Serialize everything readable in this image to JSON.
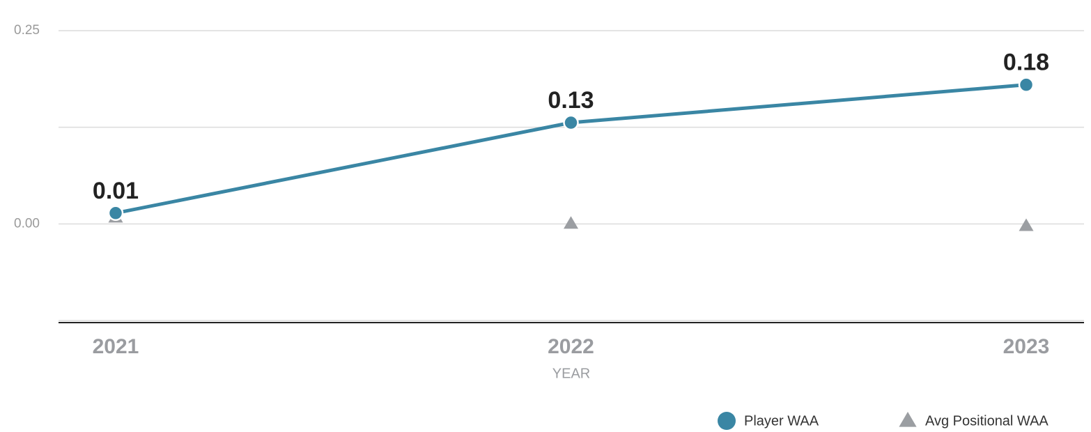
{
  "chart_data": {
    "type": "line",
    "x_label": "YEAR",
    "categories": [
      "2021",
      "2022",
      "2023"
    ],
    "series": [
      {
        "name": "Player WAA",
        "color": "#3a86a4",
        "marker": "circle",
        "values": [
          0.014,
          0.131,
          0.18
        ],
        "value_labels": [
          "0.01",
          "0.13",
          "0.18"
        ]
      },
      {
        "name": "Avg Positional WAA",
        "color": "#9b9ea2",
        "marker": "triangle",
        "values": [
          0.009,
          0.001,
          -0.002
        ]
      }
    ],
    "ylim": [
      -0.125,
      0.25
    ],
    "yticks": [
      {
        "value": -0.125,
        "label": null
      },
      {
        "value": 0,
        "label": "0.00"
      },
      {
        "value": 0.125,
        "label": null
      },
      {
        "value": 0.25,
        "label": "0.25"
      }
    ],
    "grid": true,
    "legend": "bottom-right"
  }
}
